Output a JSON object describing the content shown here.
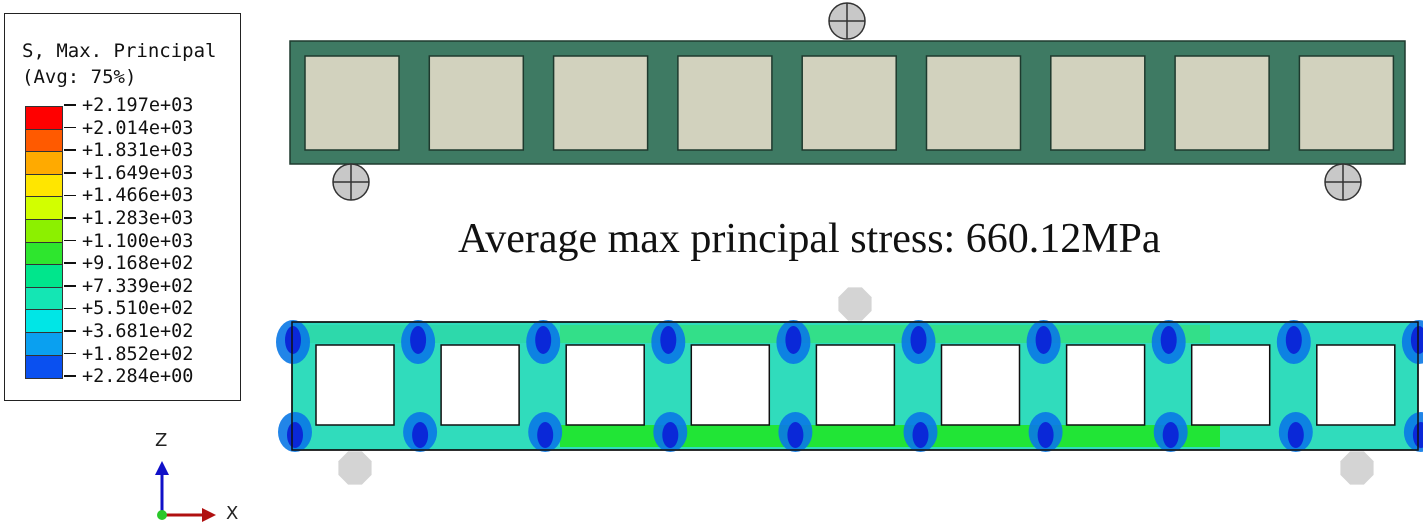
{
  "legend": {
    "title_line1": "S, Max. Principal",
    "title_line2": "(Avg: 75%)",
    "entries": [
      {
        "label": "+2.197e+03",
        "color": "#ff0000"
      },
      {
        "label": "+2.014e+03",
        "color": "#ff5a00"
      },
      {
        "label": "+1.831e+03",
        "color": "#ffaa00"
      },
      {
        "label": "+1.649e+03",
        "color": "#ffe600"
      },
      {
        "label": "+1.466e+03",
        "color": "#d2ff00"
      },
      {
        "label": "+1.283e+03",
        "color": "#8cf000"
      },
      {
        "label": "+1.100e+03",
        "color": "#2ee62e"
      },
      {
        "label": "+9.168e+02",
        "color": "#00e68c"
      },
      {
        "label": "+7.339e+02",
        "color": "#14e6b4"
      },
      {
        "label": "+5.510e+02",
        "color": "#00e6e6"
      },
      {
        "label": "+3.681e+02",
        "color": "#0aa0f0"
      },
      {
        "label": "+1.852e+02",
        "color": "#0a50f0"
      },
      {
        "label": "+2.284e+00",
        "color": "#0000e6"
      }
    ]
  },
  "caption": "Average max principal stress: 660.12MPa",
  "axes": {
    "z_label": "Z",
    "x_label": "X"
  },
  "colors": {
    "beam_frame": "#3e7a63",
    "beam_hole": "#d2d2be",
    "support_fill": "#c8c8c8",
    "contour_base": "#30dcbc",
    "contour_high": "#1ee61e",
    "contour_low": "#0a28d8",
    "ghost_support": "#d4d4d4"
  },
  "beam": {
    "hole_count": 9
  }
}
